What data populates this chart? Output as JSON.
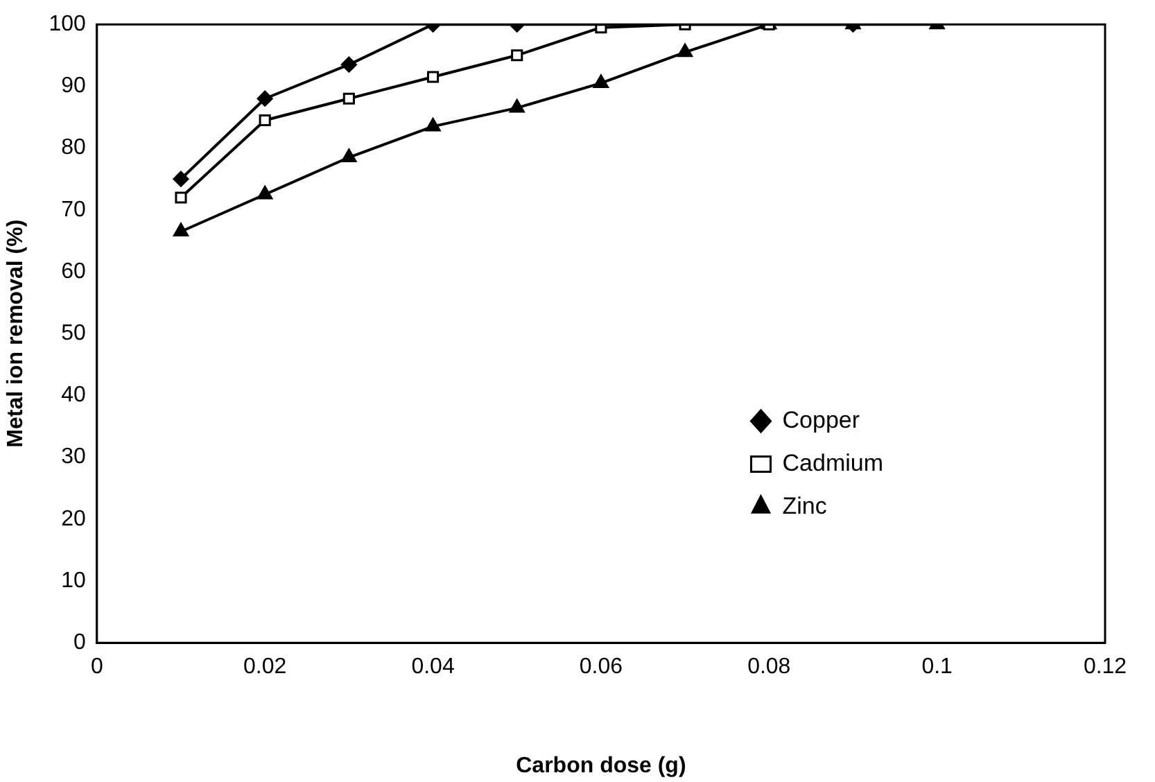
{
  "chart_data": {
    "type": "line",
    "xlabel": "Carbon dose (g)",
    "ylabel": "Metal ion removal (%)",
    "xlim": [
      0,
      0.12
    ],
    "xticks": [
      0,
      0.02,
      0.04,
      0.06,
      0.08,
      0.1,
      0.12
    ],
    "ylim": [
      0,
      100
    ],
    "yticks": [
      0,
      10,
      20,
      30,
      40,
      50,
      60,
      70,
      80,
      90,
      100
    ],
    "grid": false,
    "legend": "right",
    "line_style": "solid",
    "series": [
      {
        "name": "Copper",
        "color": "#000000",
        "marker": "diamond",
        "x": [
          0.01,
          0.02,
          0.03,
          0.04,
          0.05,
          0.06,
          0.07,
          0.08,
          0.09
        ],
        "values": [
          75,
          88,
          93.5,
          100,
          100,
          null,
          null,
          null,
          100
        ]
      },
      {
        "name": "Cadmium",
        "color": "#000000",
        "marker": "square",
        "x": [
          0.01,
          0.02,
          0.03,
          0.04,
          0.05,
          0.06,
          0.07,
          0.08
        ],
        "values": [
          72,
          84.5,
          88,
          91.5,
          95,
          99.5,
          100,
          100
        ]
      },
      {
        "name": "Zinc",
        "color": "#000000",
        "marker": "triangle",
        "x": [
          0.01,
          0.02,
          0.03,
          0.04,
          0.05,
          0.06,
          0.07,
          0.08,
          0.09,
          0.1
        ],
        "values": [
          66.5,
          72.5,
          78.5,
          83.5,
          86.5,
          90.5,
          95.5,
          100,
          100,
          100
        ]
      }
    ]
  }
}
